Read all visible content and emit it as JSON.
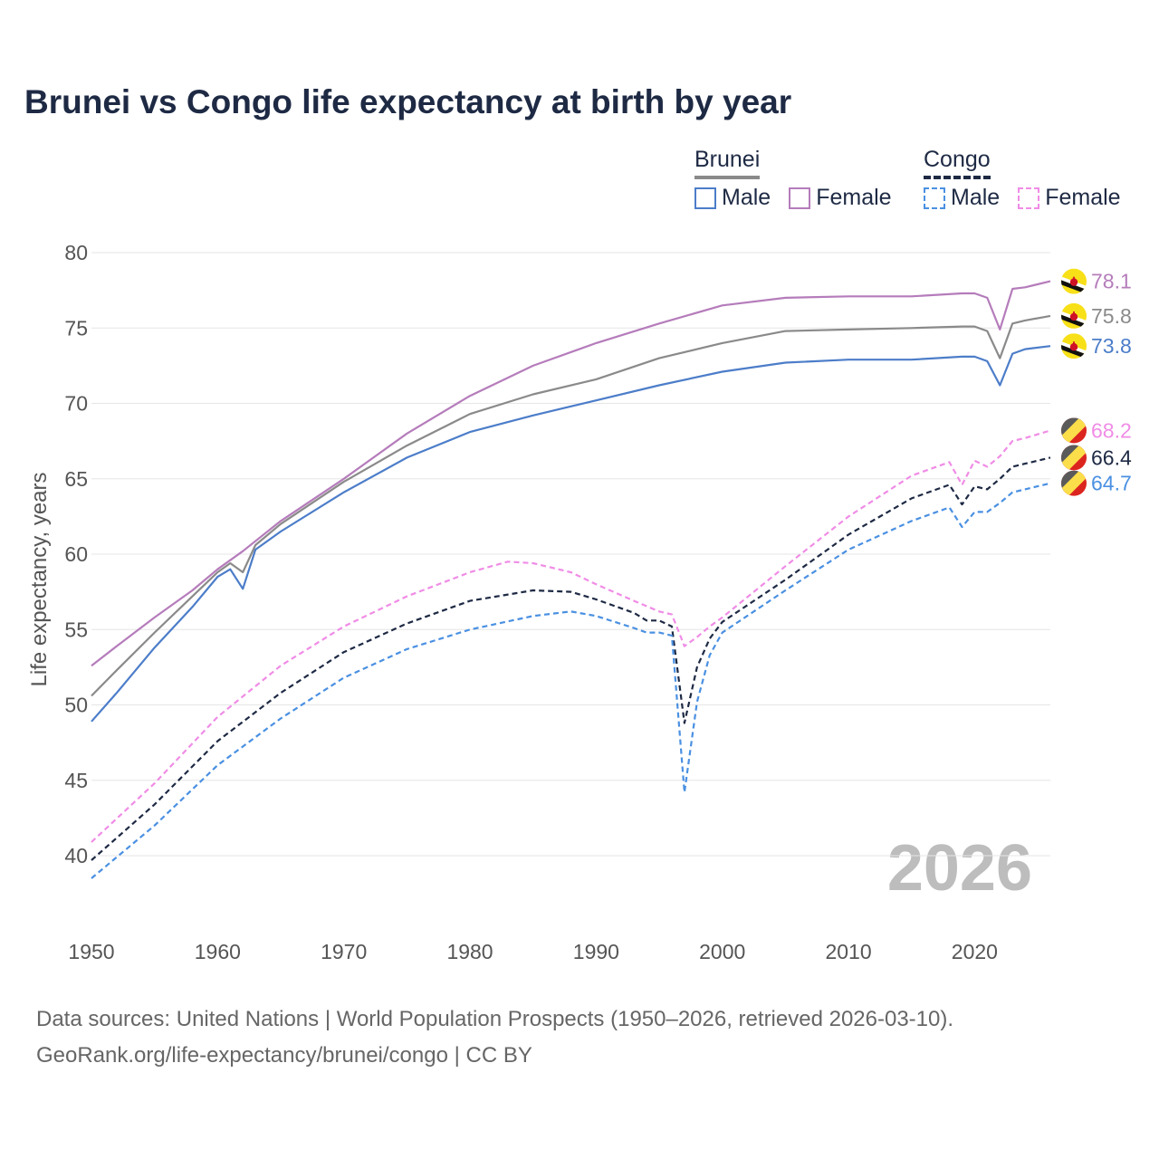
{
  "title": "Brunei vs Congo life expectancy at birth by year",
  "legend": {
    "brunei": {
      "label": "Brunei",
      "male": "Male",
      "female": "Female"
    },
    "congo": {
      "label": "Congo",
      "male": "Male",
      "female": "Female"
    }
  },
  "watermark_year": "2026",
  "footer": {
    "line1": "Data sources: United Nations | World Population Prospects (1950–2026, retrieved 2026-03-10).",
    "line2": "GeoRank.org/life-expectancy/brunei/congo | CC BY"
  },
  "colors": {
    "brunei_male": "#4c7dc9",
    "brunei_female": "#b57cbb",
    "brunei_total": "#8a8a8a",
    "congo_male": "#4a90e2",
    "congo_female": "#f08ce6",
    "congo_total": "#1e2a44"
  },
  "chart_data": {
    "type": "line",
    "title": "Brunei vs Congo life expectancy at birth by year",
    "xlabel": "",
    "ylabel": "Life expectancy, years",
    "xlim": [
      1950,
      2026
    ],
    "ylim": [
      37,
      82
    ],
    "xticks": [
      1950,
      1960,
      1970,
      1980,
      1990,
      2000,
      2010,
      2020
    ],
    "yticks": [
      40,
      45,
      50,
      55,
      60,
      65,
      70,
      75,
      80
    ],
    "grid": true,
    "series": [
      {
        "key": "brunei_female",
        "name": "Brunei Female",
        "dashed": false,
        "end_label": "78.1",
        "flag": "brunei",
        "points": [
          [
            1950,
            52.6
          ],
          [
            1952,
            53.9
          ],
          [
            1955,
            55.8
          ],
          [
            1958,
            57.6
          ],
          [
            1960,
            59.0
          ],
          [
            1962,
            60.2
          ],
          [
            1965,
            62.2
          ],
          [
            1970,
            65.0
          ],
          [
            1975,
            68.0
          ],
          [
            1980,
            70.5
          ],
          [
            1985,
            72.5
          ],
          [
            1990,
            74.0
          ],
          [
            1995,
            75.3
          ],
          [
            2000,
            76.5
          ],
          [
            2005,
            77.0
          ],
          [
            2010,
            77.1
          ],
          [
            2015,
            77.1
          ],
          [
            2019,
            77.3
          ],
          [
            2020,
            77.3
          ],
          [
            2021,
            77.0
          ],
          [
            2022,
            74.9
          ],
          [
            2023,
            77.6
          ],
          [
            2024,
            77.7
          ],
          [
            2026,
            78.1
          ]
        ]
      },
      {
        "key": "brunei_total",
        "name": "Brunei",
        "dashed": false,
        "end_label": "75.8",
        "flag": "brunei",
        "points": [
          [
            1950,
            50.6
          ],
          [
            1952,
            52.3
          ],
          [
            1955,
            54.8
          ],
          [
            1958,
            57.2
          ],
          [
            1960,
            58.8
          ],
          [
            1961,
            59.4
          ],
          [
            1962,
            58.8
          ],
          [
            1963,
            60.6
          ],
          [
            1965,
            62.0
          ],
          [
            1970,
            64.8
          ],
          [
            1975,
            67.2
          ],
          [
            1980,
            69.3
          ],
          [
            1985,
            70.6
          ],
          [
            1990,
            71.6
          ],
          [
            1995,
            73.0
          ],
          [
            2000,
            74.0
          ],
          [
            2005,
            74.8
          ],
          [
            2010,
            74.9
          ],
          [
            2015,
            75.0
          ],
          [
            2019,
            75.1
          ],
          [
            2020,
            75.1
          ],
          [
            2021,
            74.8
          ],
          [
            2022,
            73.0
          ],
          [
            2023,
            75.3
          ],
          [
            2024,
            75.5
          ],
          [
            2026,
            75.8
          ]
        ]
      },
      {
        "key": "brunei_male",
        "name": "Brunei Male",
        "dashed": false,
        "end_label": "73.8",
        "flag": "brunei",
        "points": [
          [
            1950,
            48.9
          ],
          [
            1952,
            50.8
          ],
          [
            1955,
            53.8
          ],
          [
            1958,
            56.5
          ],
          [
            1960,
            58.5
          ],
          [
            1961,
            59.0
          ],
          [
            1962,
            57.7
          ],
          [
            1963,
            60.3
          ],
          [
            1965,
            61.5
          ],
          [
            1970,
            64.1
          ],
          [
            1975,
            66.4
          ],
          [
            1980,
            68.1
          ],
          [
            1985,
            69.2
          ],
          [
            1990,
            70.2
          ],
          [
            1995,
            71.2
          ],
          [
            2000,
            72.1
          ],
          [
            2005,
            72.7
          ],
          [
            2010,
            72.9
          ],
          [
            2015,
            72.9
          ],
          [
            2019,
            73.1
          ],
          [
            2020,
            73.1
          ],
          [
            2021,
            72.8
          ],
          [
            2022,
            71.2
          ],
          [
            2023,
            73.3
          ],
          [
            2024,
            73.6
          ],
          [
            2026,
            73.8
          ]
        ]
      },
      {
        "key": "congo_female",
        "name": "Congo Female",
        "dashed": true,
        "end_label": "68.2",
        "flag": "congo",
        "points": [
          [
            1950,
            40.9
          ],
          [
            1955,
            44.8
          ],
          [
            1960,
            49.2
          ],
          [
            1965,
            52.6
          ],
          [
            1970,
            55.2
          ],
          [
            1975,
            57.2
          ],
          [
            1980,
            58.8
          ],
          [
            1983,
            59.5
          ],
          [
            1985,
            59.4
          ],
          [
            1988,
            58.8
          ],
          [
            1990,
            58.0
          ],
          [
            1993,
            56.9
          ],
          [
            1995,
            56.2
          ],
          [
            1996,
            56.0
          ],
          [
            1997,
            53.9
          ],
          [
            1998,
            54.5
          ],
          [
            1999,
            55.2
          ],
          [
            2000,
            55.8
          ],
          [
            2005,
            59.2
          ],
          [
            2010,
            62.5
          ],
          [
            2015,
            65.2
          ],
          [
            2018,
            66.1
          ],
          [
            2019,
            64.6
          ],
          [
            2020,
            66.2
          ],
          [
            2021,
            65.8
          ],
          [
            2022,
            66.5
          ],
          [
            2023,
            67.5
          ],
          [
            2024,
            67.7
          ],
          [
            2026,
            68.2
          ]
        ]
      },
      {
        "key": "congo_total",
        "name": "Congo",
        "dashed": true,
        "end_label": "66.4",
        "flag": "congo",
        "points": [
          [
            1950,
            39.7
          ],
          [
            1955,
            43.4
          ],
          [
            1960,
            47.6
          ],
          [
            1965,
            50.8
          ],
          [
            1970,
            53.5
          ],
          [
            1975,
            55.4
          ],
          [
            1980,
            56.9
          ],
          [
            1985,
            57.6
          ],
          [
            1988,
            57.5
          ],
          [
            1990,
            57.0
          ],
          [
            1993,
            56.1
          ],
          [
            1994,
            55.6
          ],
          [
            1995,
            55.6
          ],
          [
            1996,
            55.2
          ],
          [
            1997,
            48.8
          ],
          [
            1998,
            52.5
          ],
          [
            1999,
            54.4
          ],
          [
            2000,
            55.5
          ],
          [
            2005,
            58.3
          ],
          [
            2010,
            61.3
          ],
          [
            2015,
            63.7
          ],
          [
            2018,
            64.6
          ],
          [
            2019,
            63.3
          ],
          [
            2020,
            64.5
          ],
          [
            2021,
            64.3
          ],
          [
            2022,
            65.0
          ],
          [
            2023,
            65.8
          ],
          [
            2024,
            66.0
          ],
          [
            2026,
            66.4
          ]
        ]
      },
      {
        "key": "congo_male",
        "name": "Congo Male",
        "dashed": true,
        "end_label": "64.7",
        "flag": "congo",
        "points": [
          [
            1950,
            38.5
          ],
          [
            1955,
            42.0
          ],
          [
            1960,
            46.0
          ],
          [
            1965,
            49.1
          ],
          [
            1970,
            51.8
          ],
          [
            1975,
            53.7
          ],
          [
            1980,
            55.0
          ],
          [
            1985,
            55.9
          ],
          [
            1988,
            56.2
          ],
          [
            1990,
            55.9
          ],
          [
            1993,
            55.1
          ],
          [
            1994,
            54.8
          ],
          [
            1995,
            54.8
          ],
          [
            1996,
            54.6
          ],
          [
            1997,
            44.2
          ],
          [
            1998,
            50.2
          ],
          [
            1999,
            53.3
          ],
          [
            2000,
            54.8
          ],
          [
            2005,
            57.6
          ],
          [
            2010,
            60.3
          ],
          [
            2015,
            62.2
          ],
          [
            2018,
            63.1
          ],
          [
            2019,
            61.8
          ],
          [
            2020,
            62.8
          ],
          [
            2021,
            62.8
          ],
          [
            2022,
            63.4
          ],
          [
            2023,
            64.1
          ],
          [
            2024,
            64.3
          ],
          [
            2026,
            64.7
          ]
        ]
      }
    ]
  }
}
